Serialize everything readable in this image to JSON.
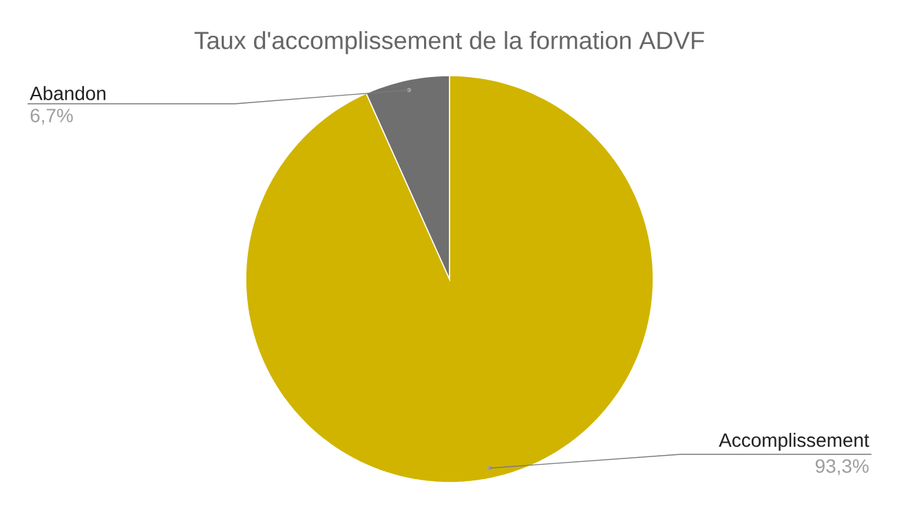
{
  "chart_data": {
    "type": "pie",
    "title": "Taux d'accomplissement de la formation ADVF",
    "categories": [
      "Accomplissement",
      "Abandon"
    ],
    "values": [
      93.3,
      6.7
    ],
    "colors": [
      "#d1b400",
      "#6f6f6f"
    ],
    "value_labels": [
      "93,3%",
      "6,7%"
    ]
  }
}
